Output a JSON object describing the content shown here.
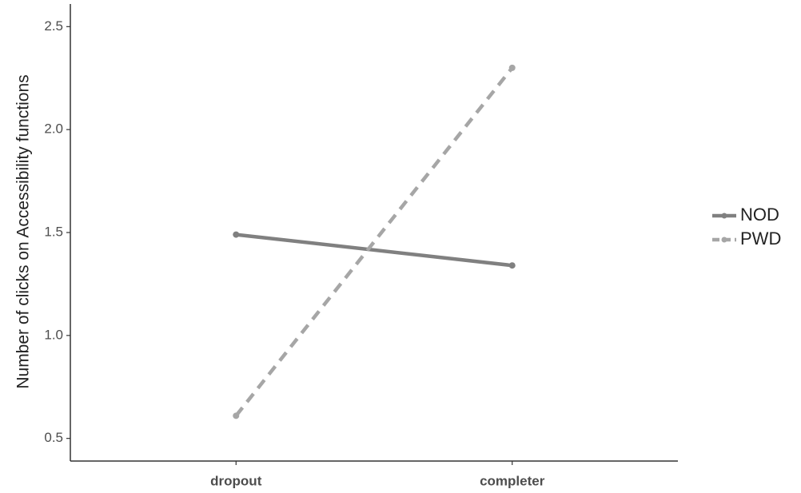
{
  "chart_data": {
    "type": "line",
    "ylabel": "Number of clicks on Accessibility functions",
    "categories": [
      "dropout",
      "completer"
    ],
    "series": [
      {
        "name": "NOD",
        "color": "#808080",
        "dash": false,
        "values": [
          1.49,
          1.34
        ]
      },
      {
        "name": "PWD",
        "color": "#a6a6a6",
        "dash": true,
        "values": [
          0.61,
          2.3
        ]
      }
    ],
    "ylim": [
      0.39,
      2.61
    ],
    "yticks": [
      0.5,
      {
        "value": 1,
        "label": "1.0"
      },
      1.5,
      {
        "value": 2,
        "label": "2.0"
      },
      2.5
    ],
    "grid": false,
    "legend": "right"
  }
}
